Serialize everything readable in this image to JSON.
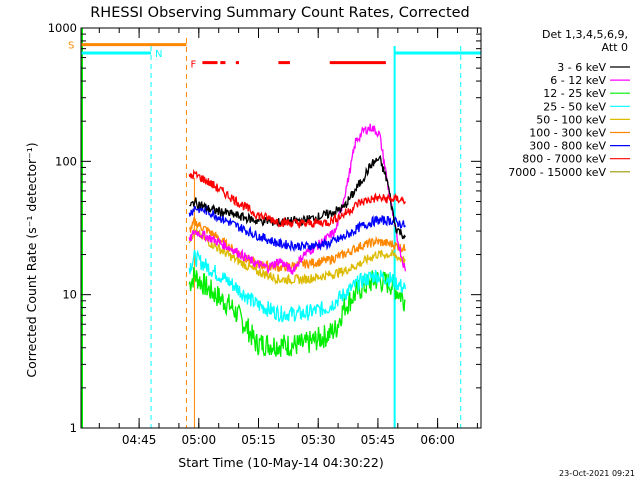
{
  "chart_data": {
    "type": "line",
    "title": "RHESSI Observing Summary Count Rates, Corrected",
    "xlabel": "Start Time (10-May-14 04:30:22)",
    "ylabel": "Corrected Count Rate (s⁻¹ detector⁻¹)",
    "y_scale": "log",
    "ylim": [
      1,
      1000
    ],
    "xlim_minutes": [
      0,
      100.5
    ],
    "y_ticks": [
      {
        "value": 1,
        "label": "1"
      },
      {
        "value": 10,
        "label": "10"
      },
      {
        "value": 100,
        "label": "100"
      },
      {
        "value": 1000,
        "label": "1000"
      }
    ],
    "x_ticks": [
      {
        "minute": 14.6,
        "label": "04:45"
      },
      {
        "minute": 29.6,
        "label": "05:00"
      },
      {
        "minute": 44.6,
        "label": "05:15"
      },
      {
        "minute": 59.6,
        "label": "05:30"
      },
      {
        "minute": 74.6,
        "label": "05:45"
      },
      {
        "minute": 89.6,
        "label": "06:00"
      }
    ],
    "legend": {
      "title_line1": "Det 1,3,4,5,6,9,",
      "title_line2": "Att 0",
      "entries": [
        {
          "label": "3 - 6 keV",
          "color": "#000000"
        },
        {
          "label": "6 - 12 keV",
          "color": "#ff00ff"
        },
        {
          "label": "12 - 25 keV",
          "color": "#00ee00"
        },
        {
          "label": "25 - 50 keV",
          "color": "#00ffff"
        },
        {
          "label": "50 - 100 keV",
          "color": "#ddbb00"
        },
        {
          "label": "100 - 300 keV",
          "color": "#ff8800"
        },
        {
          "label": "300 - 800 keV",
          "color": "#0000ff"
        },
        {
          "label": "800 - 7000 keV",
          "color": "#ff0000"
        },
        {
          "label": "7000 - 15000 keV",
          "color": "#999900"
        }
      ]
    },
    "series": [
      {
        "color": "#ff0000",
        "x": [
          27.2,
          28.5,
          32,
          38,
          44,
          50,
          56,
          62,
          66,
          70,
          74,
          78,
          80,
          81.5
        ],
        "y": [
          75,
          80,
          70,
          53,
          40,
          35,
          34,
          35,
          40,
          49,
          53,
          52,
          52,
          50
        ]
      },
      {
        "color": "#000000",
        "x": [
          27.2,
          28.5,
          32,
          38,
          44,
          50,
          56,
          62,
          66,
          70,
          73,
          75,
          77,
          79,
          81.5
        ],
        "y": [
          45,
          50,
          44,
          40,
          36,
          35,
          36,
          40,
          45,
          68,
          95,
          105,
          70,
          32,
          27
        ]
      },
      {
        "color": "#0000ff",
        "x": [
          27.2,
          28.5,
          32,
          38,
          44,
          50,
          56,
          62,
          66,
          70,
          74,
          78,
          81.5
        ],
        "y": [
          40,
          45,
          42,
          34,
          28,
          24,
          23,
          24,
          27,
          32,
          36,
          36,
          33
        ]
      },
      {
        "color": "#ff00ff",
        "x": [
          27.2,
          28.5,
          32,
          38,
          44,
          47,
          50,
          53,
          56,
          60,
          64,
          67,
          69,
          71,
          73,
          75,
          77,
          79,
          81.5
        ],
        "y": [
          25,
          30,
          27,
          22,
          17,
          16,
          18,
          15,
          20,
          24,
          30,
          70,
          140,
          170,
          180,
          160,
          70,
          30,
          15
        ]
      },
      {
        "color": "#ddbb00",
        "x": [
          27.2,
          28.5,
          32,
          38,
          44,
          50,
          56,
          62,
          66,
          70,
          74,
          78,
          81.5
        ],
        "y": [
          26,
          30,
          25,
          19,
          15,
          13,
          13,
          14,
          15,
          17,
          20,
          20,
          18
        ]
      },
      {
        "color": "#ff8800",
        "x": [
          27.2,
          28.5,
          32,
          38,
          44,
          50,
          56,
          62,
          66,
          70,
          74,
          78,
          81.5
        ],
        "y": [
          30,
          35,
          30,
          22,
          17,
          16,
          17,
          18,
          20,
          23,
          25,
          24,
          22
        ]
      },
      {
        "color": "#00ffff",
        "x": [
          27.2,
          28.5,
          32,
          38,
          44,
          50,
          56,
          62,
          66,
          70,
          74,
          78,
          81.5
        ],
        "y": [
          16,
          19,
          16,
          12,
          8.5,
          7.2,
          7.2,
          8,
          10,
          12.5,
          14,
          13,
          11
        ]
      },
      {
        "color": "#00ee00",
        "x": [
          27.2,
          28.5,
          32,
          38,
          42,
          44,
          50,
          56,
          62,
          64,
          66,
          70,
          74,
          78,
          81.5
        ],
        "y": [
          12,
          14,
          11,
          8,
          5.5,
          4.3,
          4.2,
          4.2,
          5,
          5.5,
          8,
          11,
          13,
          12,
          9
        ]
      }
    ],
    "pre_flare_levels": [
      {
        "color": "#ff8800",
        "x0": 0,
        "x1": 26.5,
        "y": 750
      },
      {
        "color": "#00ffff",
        "x0": 0,
        "x1": 17.6,
        "y": 650
      },
      {
        "color": "#00ffff",
        "x0": 78.8,
        "x1": 100.5,
        "y": 650
      }
    ],
    "saa_marker": {
      "label": "S",
      "color": "#ff8800",
      "x0": 0,
      "x1": 26.5
    },
    "night_marker": {
      "label": "N",
      "color": "#00ffff",
      "x0": 17.6,
      "x1": 78.8,
      "x_dash": 95.4
    },
    "flare_marker": {
      "label": "F",
      "color": "#ff0000",
      "y": 550,
      "segments": [
        [
          30.5,
          34.3
        ],
        [
          35,
          36.3
        ],
        [
          38.9,
          39.7
        ],
        [
          49.6,
          52.5
        ],
        [
          62.5,
          76.6
        ]
      ]
    },
    "attenuator_dashes": [
      26.5
    ],
    "footer_date": "23-Oct-2021 09:21"
  }
}
